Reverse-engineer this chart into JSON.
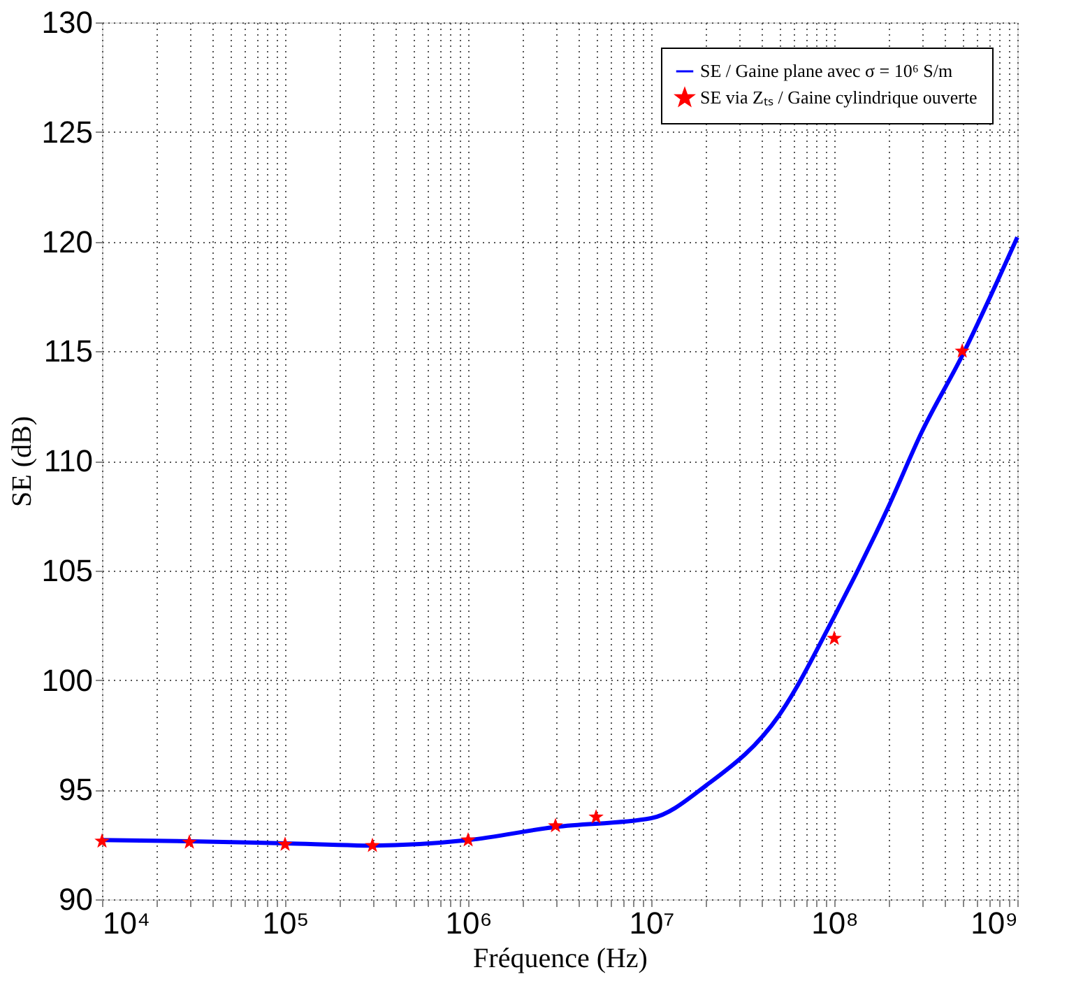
{
  "chart_data": {
    "type": "line",
    "xlabel": "Fréquence (Hz)",
    "ylabel": "SE (dB)",
    "log": "x",
    "grid": true,
    "legend": "top right",
    "xlim": [
      10000,
      1000000000
    ],
    "xticks": [
      {
        "value": 10000,
        "label": "10⁴"
      },
      {
        "value": 20000,
        "label": null
      },
      {
        "value": 30000,
        "label": null
      },
      {
        "value": 40000,
        "label": null
      },
      {
        "value": 50000,
        "label": null
      },
      {
        "value": 60000,
        "label": null
      },
      {
        "value": 70000,
        "label": null
      },
      {
        "value": 80000,
        "label": null
      },
      {
        "value": 90000,
        "label": null
      },
      {
        "value": 100000,
        "label": "10⁵"
      },
      {
        "value": 200000,
        "label": null
      },
      {
        "value": 300000,
        "label": null
      },
      {
        "value": 400000,
        "label": null
      },
      {
        "value": 500000,
        "label": null
      },
      {
        "value": 600000,
        "label": null
      },
      {
        "value": 700000,
        "label": null
      },
      {
        "value": 800000,
        "label": null
      },
      {
        "value": 900000,
        "label": null
      },
      {
        "value": 1000000,
        "label": "10⁶"
      },
      {
        "value": 2000000,
        "label": null
      },
      {
        "value": 3000000,
        "label": null
      },
      {
        "value": 4000000,
        "label": null
      },
      {
        "value": 5000000,
        "label": null
      },
      {
        "value": 6000000,
        "label": null
      },
      {
        "value": 7000000,
        "label": null
      },
      {
        "value": 8000000,
        "label": null
      },
      {
        "value": 9000000,
        "label": null
      },
      {
        "value": 10000000,
        "label": "10⁷"
      },
      {
        "value": 20000000,
        "label": null
      },
      {
        "value": 30000000,
        "label": null
      },
      {
        "value": 40000000,
        "label": null
      },
      {
        "value": 50000000,
        "label": null
      },
      {
        "value": 60000000,
        "label": null
      },
      {
        "value": 70000000,
        "label": null
      },
      {
        "value": 80000000,
        "label": null
      },
      {
        "value": 90000000,
        "label": null
      },
      {
        "value": 100000000,
        "label": "10⁸"
      },
      {
        "value": 200000000,
        "label": null
      },
      {
        "value": 300000000,
        "label": null
      },
      {
        "value": 400000000,
        "label": null
      },
      {
        "value": 500000000,
        "label": null
      },
      {
        "value": 600000000,
        "label": null
      },
      {
        "value": 700000000,
        "label": null
      },
      {
        "value": 800000000,
        "label": null
      },
      {
        "value": 900000000,
        "label": null
      },
      {
        "value": 1000000000,
        "label": "10⁹"
      }
    ],
    "ylim": [
      90,
      130
    ],
    "yticks": [
      90,
      95,
      100,
      105,
      110,
      115,
      120,
      125,
      130
    ],
    "series": [
      {
        "name": "SE / Gaine plane avec σ = 10⁶ S/m",
        "color": "#0000ff",
        "marker": "none",
        "line_style": "solid",
        "x": [
          10000,
          30000,
          100000,
          300000,
          1000000,
          3000000,
          10000000,
          20000000,
          50000000,
          100000000,
          200000000,
          300000000,
          500000000,
          1000000000
        ],
        "values": [
          92.7,
          92.65,
          92.55,
          92.45,
          92.7,
          93.3,
          93.7,
          95.2,
          98.4,
          102.9,
          108,
          111.3,
          114.8,
          120.2
        ]
      },
      {
        "name": "SE via Zₜₛ / Gaine cylindrique ouverte",
        "color": "#ff0000",
        "type": "scatter",
        "marker": "star",
        "x": [
          10000,
          30000,
          100000,
          300000,
          1000000,
          3000000,
          5000000,
          100000000,
          500000000
        ],
        "values": [
          92.65,
          92.6,
          92.5,
          92.45,
          92.7,
          93.35,
          93.75,
          101.9,
          115.0
        ]
      }
    ]
  }
}
